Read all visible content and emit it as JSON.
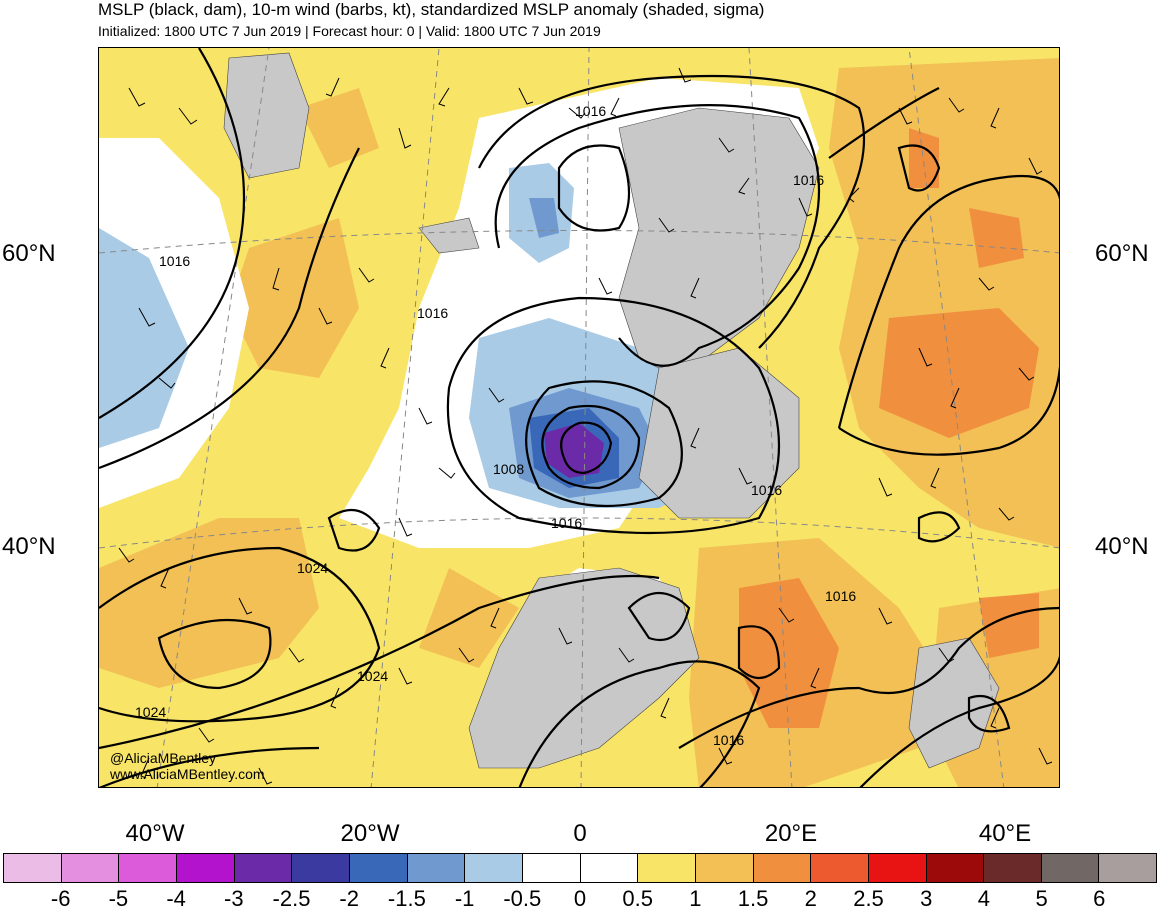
{
  "header": {
    "title": "MSLP (black, dam), 10-m wind (barbs, kt), standardized MSLP anomaly (shaded, sigma)",
    "subtitle": "Initialized: 1800 UTC 7 Jun 2019 | Forecast hour: 0 | Valid: 1800 UTC 7 Jun 2019"
  },
  "axes": {
    "lat_left": [
      "60°N",
      "40°N"
    ],
    "lat_right": [
      "60°N",
      "40°N"
    ],
    "lon": [
      "40°W",
      "20°W",
      "0",
      "20°E",
      "40°E"
    ]
  },
  "contour_labels": [
    "1016",
    "1016",
    "1016",
    "1016",
    "1016",
    "1008",
    "1016",
    "1024",
    "1016",
    "1024",
    "1024",
    "1016"
  ],
  "credits": {
    "handle": "@AliciaMBentley",
    "website": "www.AliciaMBentley.com"
  },
  "colorbar": {
    "labels": [
      "-6",
      "-5",
      "-4",
      "-3",
      "-2.5",
      "-2",
      "-1.5",
      "-1",
      "-0.5",
      "0",
      "0.5",
      "1",
      "1.5",
      "2",
      "2.5",
      "3",
      "4",
      "5",
      "6"
    ],
    "colors": [
      "#ebbde6",
      "#e48fe0",
      "#dc5bdb",
      "#b313cc",
      "#6b2aa8",
      "#3b3aa0",
      "#3a68b8",
      "#6f99cf",
      "#a9cbe6",
      "#ffffff",
      "#ffffff",
      "#f8e467",
      "#f2c055",
      "#f0903f",
      "#ee5a2f",
      "#e81414",
      "#9d0a0a",
      "#6a2a2a",
      "#716865",
      "#a99e9e"
    ]
  },
  "map_colors": {
    "ocean_base": "#f8e467",
    "land_gray": "#c8c8c8",
    "contour": "#000000"
  }
}
